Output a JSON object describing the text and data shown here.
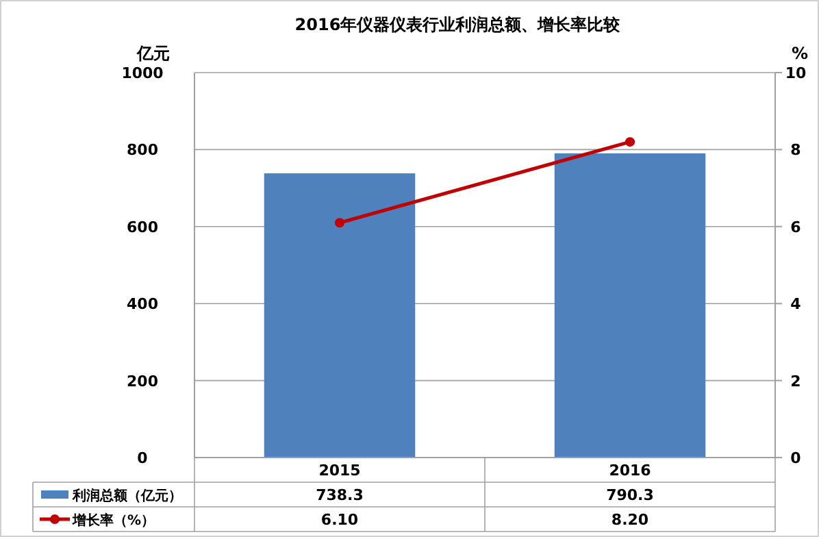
{
  "chart_data": {
    "type": "bar",
    "title": "2016年仪器仪表行业利润总额、增长率比较",
    "ylabel": "亿元",
    "y2label": "%",
    "categories": [
      "2015",
      "2016"
    ],
    "series": [
      {
        "name": "利润总额（亿元）",
        "color": "#4f81bd",
        "values": [
          738.3,
          790.3
        ],
        "value_labels": [
          "738.3",
          "790.3"
        ]
      },
      {
        "name": "增长率（%）",
        "type": "line",
        "axis": "y2",
        "color": "#c00000",
        "marker": "circle",
        "values": [
          6.1,
          8.2
        ],
        "value_labels": [
          "6.10",
          "8.20"
        ]
      }
    ],
    "ylim": [
      0,
      1000
    ],
    "yticks": [
      0,
      200,
      400,
      600,
      800,
      1000
    ],
    "y2lim": [
      0,
      10
    ],
    "y2ticks": [
      0,
      2,
      4,
      6,
      8,
      10
    ],
    "grid": "y",
    "legend": "bottom"
  }
}
